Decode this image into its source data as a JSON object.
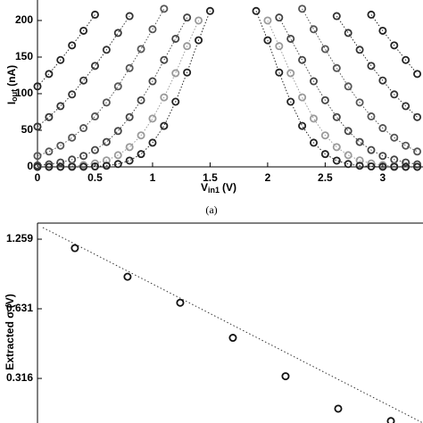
{
  "chart_data": [
    {
      "type": "scatter",
      "ylabel": {
        "main": "I",
        "sub": "out",
        "unit": "(nA)"
      },
      "xlabel": {
        "main": "V",
        "sub": "in1",
        "unit": "(V)"
      },
      "caption": "(a)",
      "x": [
        0,
        0.1,
        0.2,
        0.3,
        0.4,
        0.5,
        0.6,
        0.7,
        0.8,
        0.9,
        1,
        1.1,
        1.2,
        1.3,
        1.4,
        1.5,
        1.6,
        1.7,
        1.8,
        1.9,
        2,
        2.1,
        2.2,
        2.3,
        2.4,
        2.5,
        2.6,
        2.7,
        2.8,
        2.9,
        3,
        3.1,
        3.2,
        3.3
      ],
      "xlim": [
        0,
        3.35
      ],
      "xticks": [
        0,
        0.5,
        1,
        1.5,
        2,
        2.5,
        3
      ],
      "ylim": [
        0,
        228
      ],
      "yticks": [
        0,
        50,
        100,
        150,
        200
      ],
      "series": [
        {
          "color": "#222222",
          "values": [
            110,
            127,
            146,
            166,
            186,
            208,
            null,
            null,
            null,
            null,
            null,
            null,
            null,
            null,
            null,
            null,
            null,
            null,
            null,
            null,
            null,
            null,
            null,
            null,
            null,
            null,
            null,
            null,
            null,
            208,
            186,
            166,
            146,
            127
          ]
        },
        {
          "color": "#333333",
          "values": [
            55,
            68,
            83,
            99,
            118,
            138,
            160,
            183,
            206,
            null,
            null,
            null,
            null,
            null,
            null,
            null,
            null,
            null,
            null,
            null,
            null,
            null,
            null,
            null,
            null,
            null,
            206,
            183,
            160,
            138,
            118,
            99,
            83,
            68
          ]
        },
        {
          "color": "#555555",
          "values": [
            15,
            21,
            29,
            40,
            53,
            69,
            88,
            110,
            135,
            161,
            188,
            216,
            null,
            null,
            null,
            null,
            null,
            null,
            null,
            null,
            null,
            null,
            null,
            216,
            188,
            161,
            135,
            110,
            88,
            69,
            53,
            40,
            29,
            21
          ]
        },
        {
          "color": "#444444",
          "values": [
            2,
            3.5,
            6,
            10,
            15,
            23,
            34,
            49,
            68,
            91,
            117,
            146,
            175,
            204,
            null,
            null,
            null,
            null,
            null,
            null,
            null,
            204,
            175,
            146,
            117,
            91,
            68,
            49,
            34,
            23,
            15,
            10,
            6,
            3.5
          ]
        },
        {
          "color": "#9a9a9a",
          "values": [
            0,
            0.2,
            0.5,
            1.1,
            2.4,
            4.7,
            8.9,
            16,
            27,
            43,
            66,
            95,
            128,
            165,
            200,
            null,
            null,
            null,
            null,
            null,
            200,
            165,
            128,
            95,
            66,
            43,
            27,
            16,
            8.9,
            4.7,
            2.4,
            1.1,
            0.5,
            0.2
          ]
        },
        {
          "color": "#222222",
          "values": [
            0,
            0,
            0,
            0.1,
            0.2,
            0.6,
            1.6,
            3.9,
            8.6,
            17.5,
            33,
            56,
            89,
            129,
            173,
            213,
            null,
            null,
            null,
            213,
            173,
            129,
            89,
            56,
            33,
            17.5,
            8.6,
            3.9,
            1.6,
            0.6,
            0.2,
            0.1,
            0,
            0
          ]
        }
      ]
    },
    {
      "type": "scatter",
      "log_y": true,
      "ylabel": "Extracted σ (V)",
      "x": [
        1,
        2,
        3,
        4,
        5,
        6,
        7
      ],
      "xlim": [
        0.29,
        7.61
      ],
      "values": [
        1.152,
        0.867,
        0.67,
        0.473,
        0.323,
        0.234,
        0.207
      ],
      "color": "#111111",
      "ylim": [
        0.203,
        1.477
      ],
      "yticks": [
        0.316,
        0.631,
        1.259
      ]
    }
  ]
}
